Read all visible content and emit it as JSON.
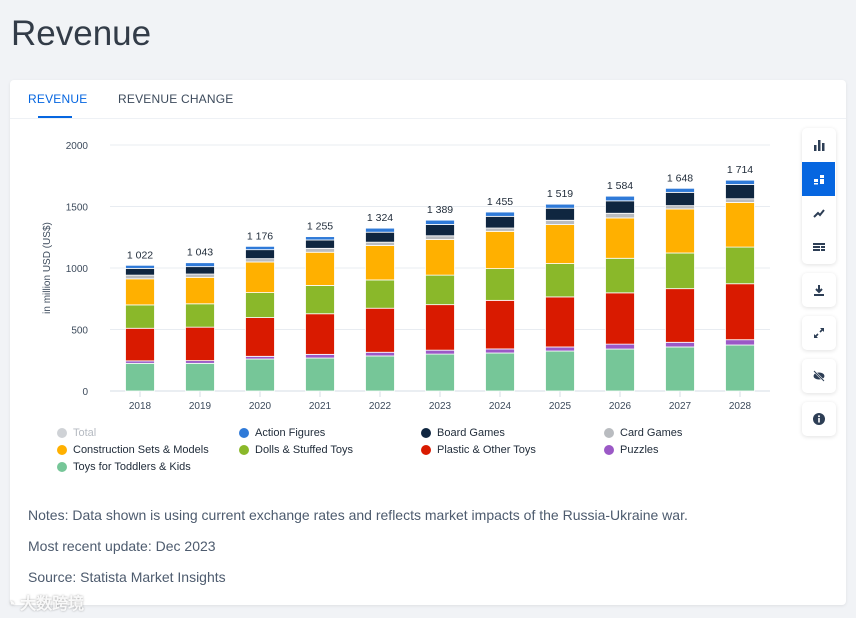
{
  "page_title": "Revenue",
  "tabs": [
    {
      "label": "REVENUE",
      "active": true
    },
    {
      "label": "REVENUE CHANGE",
      "active": false
    }
  ],
  "toolbar": {
    "groups": [
      [
        "bar-chart-icon",
        "stacked-bar-icon",
        "line-chart-icon",
        "table-icon"
      ],
      [
        "download-icon"
      ],
      [
        "fullscreen-icon"
      ],
      [
        "hide-icon"
      ],
      [
        "info-icon"
      ]
    ],
    "active": "stacked-bar-icon"
  },
  "chart_data": {
    "type": "bar",
    "stacked": true,
    "ylabel": "in million USD (US$)",
    "ylim": [
      0,
      2000
    ],
    "yticks": [
      "0",
      "500",
      "1000",
      "1500",
      "2000"
    ],
    "categories": [
      "2018",
      "2019",
      "2020",
      "2021",
      "2022",
      "2023",
      "2024",
      "2025",
      "2026",
      "2027",
      "2028"
    ],
    "totals": [
      "1 022",
      "1 043",
      "1 176",
      "1 255",
      "1 324",
      "1 389",
      "1 455",
      "1 519",
      "1 584",
      "1 648",
      "1 714"
    ],
    "series": [
      {
        "name": "Toys for Toddlers & Kids",
        "color": "#76c698",
        "values": [
          225,
          225,
          260,
          268,
          285,
          300,
          309,
          325,
          341,
          358,
          374
        ]
      },
      {
        "name": "Puzzles",
        "color": "#9b59c6",
        "values": [
          20,
          22,
          22,
          30,
          30,
          32,
          33,
          33,
          40,
          38,
          43
        ]
      },
      {
        "name": "Plastic & Other Toys",
        "color": "#d91a00",
        "values": [
          265,
          272,
          315,
          330,
          358,
          370,
          395,
          407,
          417,
          436,
          455
        ]
      },
      {
        "name": "Dolls & Stuffed Toys",
        "color": "#8ab82a",
        "values": [
          190,
          190,
          203,
          230,
          230,
          240,
          258,
          271,
          281,
          290,
          298
        ]
      },
      {
        "name": "Construction Sets & Models",
        "color": "#ffb000",
        "values": [
          212,
          215,
          249,
          270,
          280,
          290,
          303,
          317,
          328,
          358,
          363
        ]
      },
      {
        "name": "Card Games",
        "color": "#b9bcc0",
        "values": [
          30,
          27,
          27,
          32,
          27,
          30,
          27,
          35,
          38,
          27,
          30
        ]
      },
      {
        "name": "Board Games",
        "color": "#0f2640",
        "values": [
          55,
          60,
          73,
          68,
          81,
          92,
          95,
          98,
          101,
          108,
          116
        ]
      },
      {
        "name": "Action Figures",
        "color": "#2f7ad8",
        "values": [
          25,
          32,
          27,
          27,
          33,
          35,
          35,
          33,
          38,
          33,
          35
        ]
      }
    ],
    "legend": [
      {
        "name": "Total",
        "color": "#cfd2d6",
        "disabled": true
      },
      {
        "name": "Action Figures",
        "color": "#2f7ad8"
      },
      {
        "name": "Board Games",
        "color": "#0f2640"
      },
      {
        "name": "Card Games",
        "color": "#b9bcc0"
      },
      {
        "name": "Construction Sets & Models",
        "color": "#ffb000"
      },
      {
        "name": "Dolls & Stuffed Toys",
        "color": "#8ab82a"
      },
      {
        "name": "Plastic & Other Toys",
        "color": "#d91a00"
      },
      {
        "name": "Puzzles",
        "color": "#9b59c6"
      },
      {
        "name": "Toys for Toddlers & Kids",
        "color": "#76c698"
      }
    ],
    "legend_position": "bottom",
    "grid": true
  },
  "notes": [
    "Notes: Data shown is using current exchange rates and reflects market impacts of the Russia-Ukraine war.",
    "Most recent update: Dec 2023",
    "Source: Statista Market Insights"
  ],
  "watermark": "大数跨境"
}
